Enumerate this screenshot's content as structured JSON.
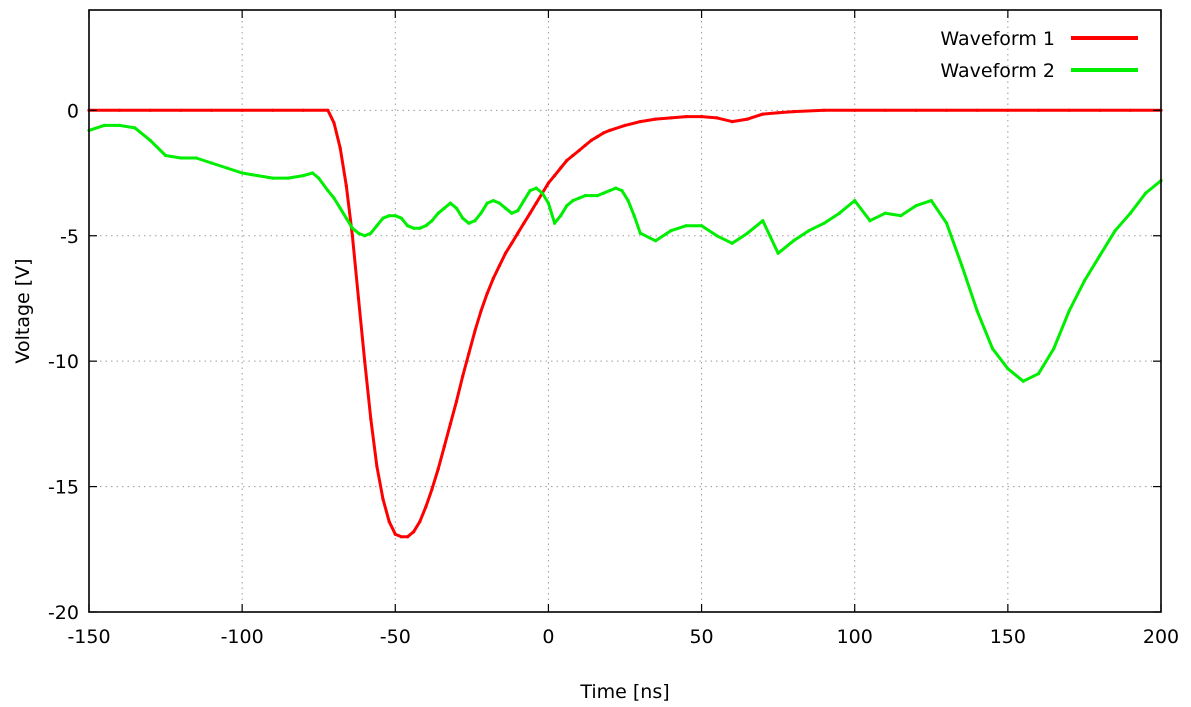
{
  "chart_data": {
    "type": "line",
    "title": "",
    "xlabel": "Time [ns]",
    "ylabel": "Voltage [V]",
    "xlim": [
      -150,
      200
    ],
    "ylim": [
      -20,
      4
    ],
    "xticks": [
      -150,
      -100,
      -50,
      0,
      50,
      100,
      150,
      200
    ],
    "yticks": [
      -20,
      -15,
      -10,
      -5,
      0
    ],
    "grid": true,
    "legend_position": "top-right",
    "series": [
      {
        "name": "Waveform 1",
        "color": "#ff0000",
        "x": [
          -150,
          -140,
          -130,
          -120,
          -110,
          -100,
          -90,
          -80,
          -72,
          -70,
          -68,
          -66,
          -64,
          -62,
          -60,
          -58,
          -56,
          -54,
          -52,
          -50,
          -48,
          -46,
          -44,
          -42,
          -40,
          -38,
          -36,
          -34,
          -32,
          -30,
          -28,
          -26,
          -24,
          -22,
          -20,
          -18,
          -16,
          -14,
          -12,
          -10,
          -8,
          -6,
          -4,
          -2,
          0,
          2,
          4,
          6,
          8,
          10,
          12,
          14,
          16,
          18,
          20,
          25,
          30,
          35,
          40,
          45,
          50,
          55,
          60,
          65,
          70,
          75,
          80,
          90,
          100,
          110,
          120,
          130,
          140,
          150,
          160,
          170,
          180,
          190,
          200
        ],
        "y": [
          0,
          0,
          0,
          0,
          0,
          0,
          0,
          0,
          0,
          -0.5,
          -1.5,
          -3,
          -5,
          -7.5,
          -10,
          -12.3,
          -14.2,
          -15.5,
          -16.4,
          -16.9,
          -17,
          -17,
          -16.8,
          -16.4,
          -15.8,
          -15.1,
          -14.3,
          -13.4,
          -12.5,
          -11.6,
          -10.6,
          -9.7,
          -8.8,
          -8,
          -7.3,
          -6.7,
          -6.2,
          -5.7,
          -5.3,
          -4.9,
          -4.5,
          -4.1,
          -3.7,
          -3.3,
          -2.9,
          -2.6,
          -2.3,
          -2,
          -1.8,
          -1.6,
          -1.4,
          -1.2,
          -1.05,
          -0.9,
          -0.8,
          -0.6,
          -0.45,
          -0.35,
          -0.3,
          -0.25,
          -0.25,
          -0.3,
          -0.45,
          -0.35,
          -0.15,
          -0.1,
          -0.05,
          0,
          0,
          0,
          0,
          0,
          0,
          0,
          0,
          0,
          0,
          0,
          0
        ]
      },
      {
        "name": "Waveform 2",
        "color": "#00ee00",
        "x": [
          -150,
          -145,
          -140,
          -135,
          -130,
          -125,
          -120,
          -115,
          -110,
          -105,
          -100,
          -95,
          -90,
          -85,
          -80,
          -77,
          -75,
          -72,
          -70,
          -68,
          -66,
          -64,
          -62,
          -60,
          -58,
          -56,
          -54,
          -52,
          -50,
          -48,
          -46,
          -44,
          -42,
          -40,
          -38,
          -36,
          -34,
          -32,
          -30,
          -28,
          -26,
          -24,
          -22,
          -20,
          -18,
          -16,
          -14,
          -12,
          -10,
          -8,
          -6,
          -4,
          -2,
          0,
          2,
          4,
          6,
          8,
          10,
          12,
          14,
          16,
          18,
          20,
          22,
          24,
          26,
          28,
          30,
          35,
          40,
          45,
          50,
          55,
          60,
          65,
          70,
          75,
          80,
          85,
          90,
          95,
          100,
          105,
          110,
          115,
          120,
          125,
          130,
          135,
          140,
          145,
          150,
          155,
          160,
          165,
          170,
          175,
          180,
          185,
          190,
          195,
          200
        ],
        "y": [
          -0.8,
          -0.6,
          -0.6,
          -0.7,
          -1.2,
          -1.8,
          -1.9,
          -1.9,
          -2.1,
          -2.3,
          -2.5,
          -2.6,
          -2.7,
          -2.7,
          -2.6,
          -2.5,
          -2.7,
          -3.2,
          -3.5,
          -3.9,
          -4.3,
          -4.7,
          -4.9,
          -5,
          -4.9,
          -4.6,
          -4.3,
          -4.2,
          -4.2,
          -4.3,
          -4.6,
          -4.7,
          -4.7,
          -4.6,
          -4.4,
          -4.1,
          -3.9,
          -3.7,
          -3.9,
          -4.3,
          -4.5,
          -4.4,
          -4.1,
          -3.7,
          -3.6,
          -3.7,
          -3.9,
          -4.1,
          -4,
          -3.6,
          -3.2,
          -3.1,
          -3.3,
          -3.7,
          -4.5,
          -4.2,
          -3.8,
          -3.6,
          -3.5,
          -3.4,
          -3.4,
          -3.4,
          -3.3,
          -3.2,
          -3.1,
          -3.2,
          -3.6,
          -4.2,
          -4.9,
          -5.2,
          -4.8,
          -4.6,
          -4.6,
          -5,
          -5.3,
          -4.9,
          -4.4,
          -5.7,
          -5.2,
          -4.8,
          -4.5,
          -4.1,
          -3.6,
          -4.4,
          -4.1,
          -4.2,
          -3.8,
          -3.6,
          -4.5,
          -6.2,
          -8,
          -9.5,
          -10.3,
          -10.8,
          -10.5,
          -9.5,
          -8,
          -6.8,
          -5.8,
          -4.8,
          -4.1,
          -3.3,
          -2.8
        ]
      }
    ]
  }
}
